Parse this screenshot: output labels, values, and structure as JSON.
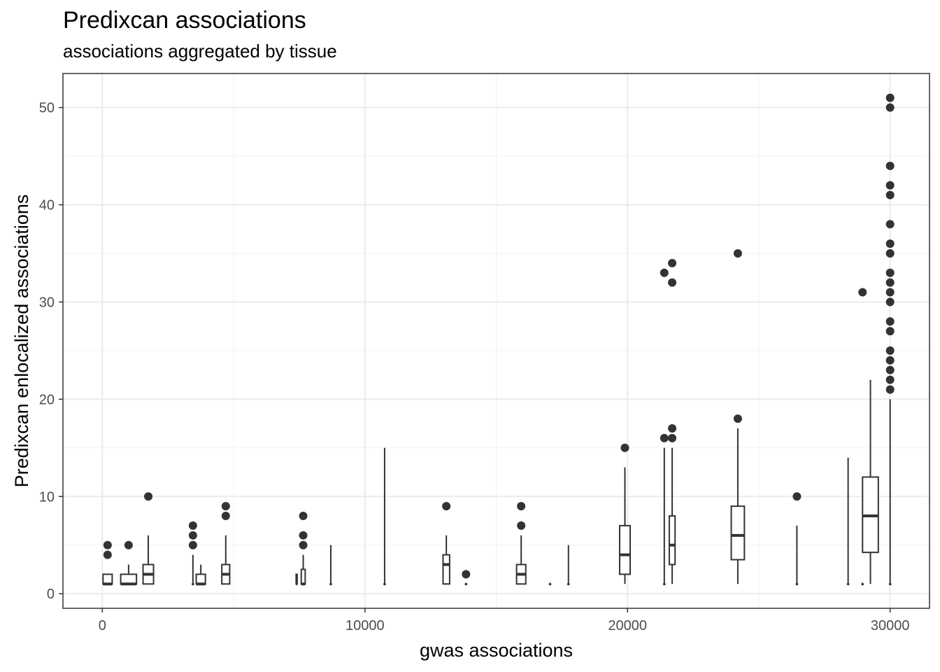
{
  "chart_data": {
    "type": "boxplot",
    "title": "Predixcan associations",
    "subtitle": "associations aggregated by tissue",
    "xlabel": "gwas associations",
    "ylabel": "Predixcan enlocalized associations",
    "xlim": [
      -1500,
      31500
    ],
    "ylim": [
      -1.5,
      53.5
    ],
    "xticks": [
      0,
      10000,
      20000,
      30000
    ],
    "xtick_labels": [
      "0",
      "10000",
      "20000",
      "30000"
    ],
    "yticks": [
      0,
      10,
      20,
      30,
      40,
      50
    ],
    "ytick_labels": [
      "0",
      "10",
      "20",
      "30",
      "40",
      "50"
    ],
    "grid": true,
    "boxes": [
      {
        "x": 200,
        "width": 350,
        "min": 1,
        "q1": 1,
        "median": 1,
        "q3": 2,
        "max": 2,
        "outliers": [
          4,
          5
        ]
      },
      {
        "x": 1000,
        "width": 600,
        "min": 1,
        "q1": 1,
        "median": 1,
        "q3": 2,
        "max": 3,
        "outliers": [
          5
        ]
      },
      {
        "x": 1750,
        "width": 400,
        "min": 1,
        "q1": 1,
        "median": 2,
        "q3": 3,
        "max": 6,
        "outliers": [
          10
        ]
      },
      {
        "x": 3450,
        "width": 40,
        "min": 1,
        "q1": 1,
        "median": 1,
        "q3": 1,
        "max": 4,
        "outliers": [
          5,
          6,
          7
        ]
      },
      {
        "x": 3750,
        "width": 350,
        "min": 1,
        "q1": 1,
        "median": 1,
        "q3": 2,
        "max": 3,
        "outliers": []
      },
      {
        "x": 4700,
        "width": 300,
        "min": 1,
        "q1": 1,
        "median": 2,
        "q3": 3,
        "max": 6,
        "outliers": [
          8,
          9
        ]
      },
      {
        "x": 7400,
        "width": 40,
        "min": 1,
        "q1": 1,
        "median": 1,
        "q3": 2,
        "max": 2,
        "outliers": []
      },
      {
        "x": 7650,
        "width": 150,
        "min": 1,
        "q1": 1,
        "median": 1,
        "q3": 2.5,
        "max": 4,
        "outliers": [
          5,
          6,
          8
        ]
      },
      {
        "x": 8700,
        "width": 40,
        "min": 1,
        "q1": 1,
        "median": 1,
        "q3": 1,
        "max": 5,
        "outliers": []
      },
      {
        "x": 10750,
        "width": 40,
        "min": 1,
        "q1": 1,
        "median": 1,
        "q3": 1,
        "max": 15,
        "outliers": []
      },
      {
        "x": 13100,
        "width": 250,
        "min": 1,
        "q1": 1,
        "median": 3,
        "q3": 4,
        "max": 6,
        "outliers": [
          9
        ]
      },
      {
        "x": 13850,
        "width": 40,
        "min": 1,
        "q1": 1,
        "median": 1,
        "q3": 1,
        "max": 1,
        "outliers": [
          2
        ]
      },
      {
        "x": 15950,
        "width": 350,
        "min": 1,
        "q1": 1,
        "median": 2,
        "q3": 3,
        "max": 6,
        "outliers": [
          7,
          9
        ]
      },
      {
        "x": 17050,
        "width": 40,
        "min": 1,
        "q1": 1,
        "median": 1,
        "q3": 1,
        "max": 1,
        "outliers": []
      },
      {
        "x": 17750,
        "width": 40,
        "min": 1,
        "q1": 1,
        "median": 1,
        "q3": 1,
        "max": 5,
        "outliers": []
      },
      {
        "x": 19900,
        "width": 400,
        "min": 1,
        "q1": 2,
        "median": 4,
        "q3": 7,
        "max": 13,
        "outliers": [
          15
        ]
      },
      {
        "x": 21400,
        "width": 40,
        "min": 1,
        "q1": 1,
        "median": 1,
        "q3": 1,
        "max": 15,
        "outliers": [
          16,
          33
        ]
      },
      {
        "x": 21700,
        "width": 220,
        "min": 1,
        "q1": 3,
        "median": 5,
        "q3": 8,
        "max": 15,
        "outliers": [
          16,
          17,
          32,
          34
        ]
      },
      {
        "x": 24200,
        "width": 500,
        "min": 1,
        "q1": 3.5,
        "median": 6,
        "q3": 9,
        "max": 17,
        "outliers": [
          18,
          35
        ]
      },
      {
        "x": 26450,
        "width": 40,
        "min": 1,
        "q1": 1,
        "median": 1,
        "q3": 1,
        "max": 7,
        "outliers": [
          10
        ]
      },
      {
        "x": 28400,
        "width": 40,
        "min": 1,
        "q1": 1,
        "median": 1,
        "q3": 1,
        "max": 14,
        "outliers": []
      },
      {
        "x": 28950,
        "width": 40,
        "min": 1,
        "q1": 1,
        "median": 1,
        "q3": 1,
        "max": 1,
        "outliers": [
          31
        ]
      },
      {
        "x": 29250,
        "width": 600,
        "min": 1,
        "q1": 4.25,
        "median": 8,
        "q3": 12,
        "max": 22,
        "outliers": []
      },
      {
        "x": 30000,
        "width": 40,
        "min": 1,
        "q1": 1,
        "median": 1,
        "q3": 1,
        "max": 20,
        "outliers": [
          21,
          22,
          23,
          24,
          25,
          27,
          28,
          30,
          31,
          32,
          33,
          35,
          36,
          38,
          41,
          42,
          44,
          50,
          51
        ]
      }
    ]
  }
}
